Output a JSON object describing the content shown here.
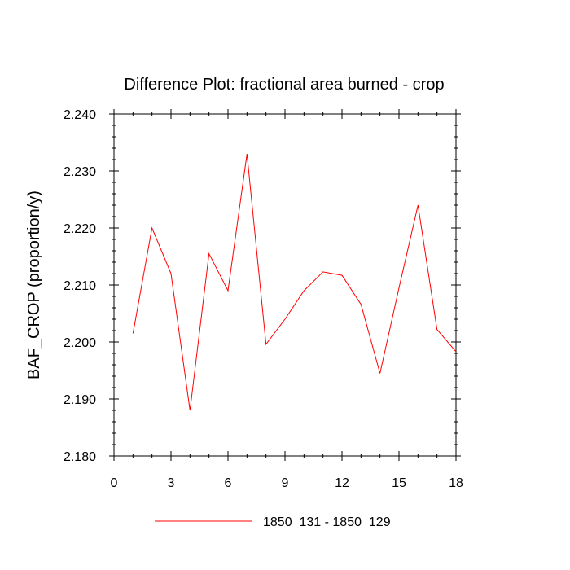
{
  "chart_data": {
    "type": "line",
    "title": "Difference Plot: fractional area burned - crop",
    "xlabel": "",
    "ylabel": "BAF_CROP  (proportion/y)",
    "xlim": [
      0,
      18
    ],
    "ylim": [
      2.18,
      2.24
    ],
    "x_ticks": [
      0,
      3,
      6,
      9,
      12,
      15,
      18
    ],
    "x_tick_labels": [
      "0",
      "3",
      "6",
      "9",
      "12",
      "15",
      "18"
    ],
    "y_ticks": [
      2.18,
      2.19,
      2.2,
      2.21,
      2.22,
      2.23,
      2.24
    ],
    "y_tick_labels": [
      "2.180",
      "2.190",
      "2.200",
      "2.210",
      "2.220",
      "2.230",
      "2.240"
    ],
    "grid": false,
    "legend_position": "bottom",
    "series": [
      {
        "name": "1850_131 - 1850_129",
        "color": "#ff0000",
        "x": [
          1,
          2,
          3,
          4,
          5,
          6,
          7,
          8,
          9,
          10,
          11,
          12,
          13,
          14,
          15,
          16,
          17,
          18
        ],
        "y": [
          2.2015,
          2.22,
          2.212,
          2.188,
          2.2155,
          2.209,
          2.233,
          2.1996,
          2.204,
          2.209,
          2.2123,
          2.2117,
          2.2066,
          2.1945,
          2.2095,
          2.224,
          2.2022,
          2.1983
        ]
      }
    ]
  }
}
